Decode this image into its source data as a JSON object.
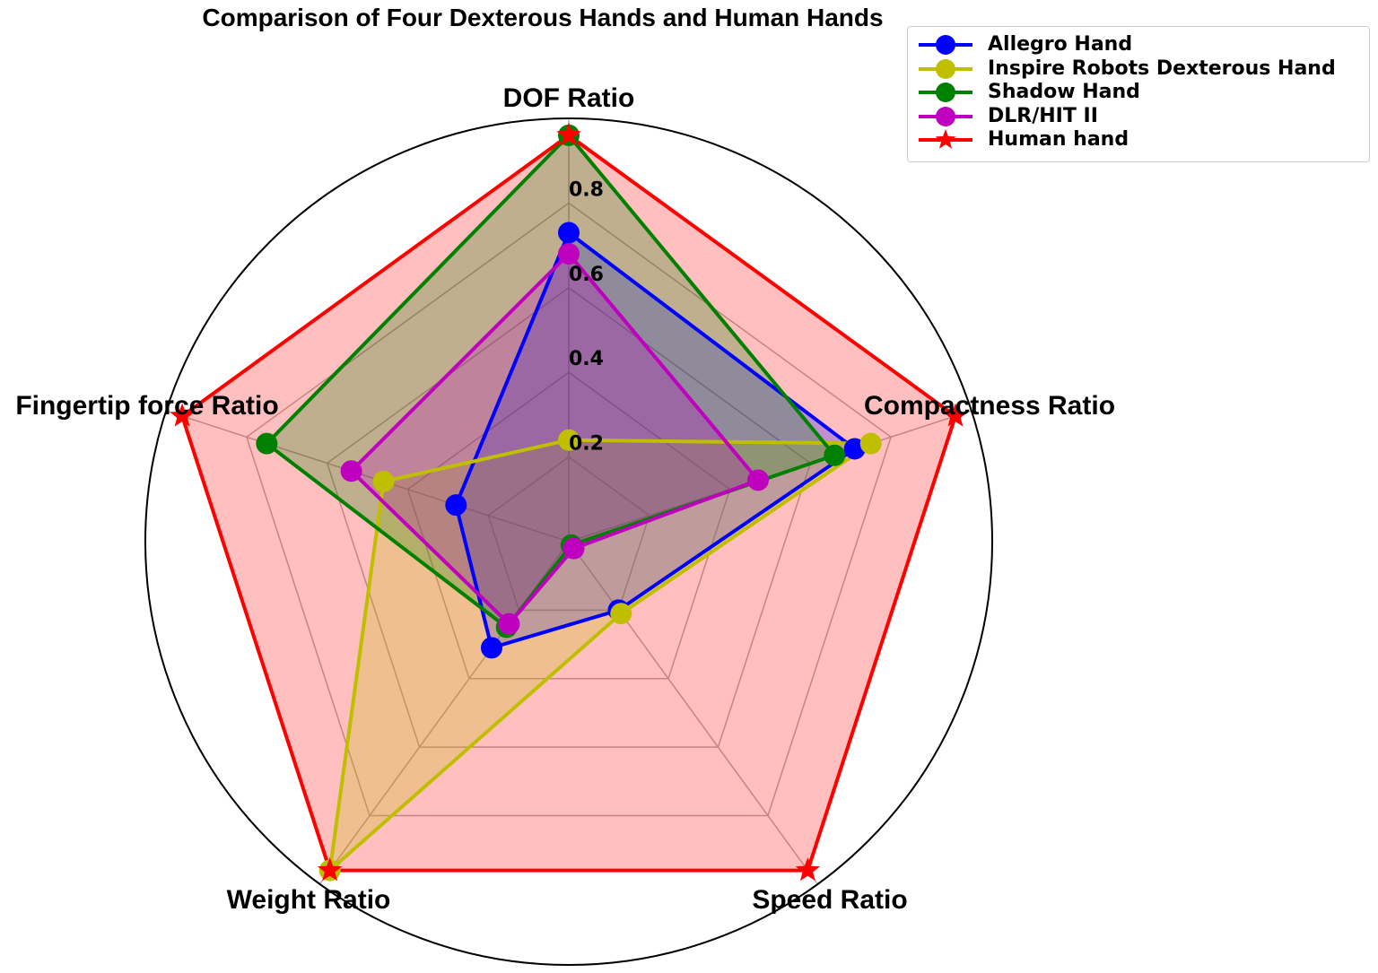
{
  "chart_data": {
    "type": "radar",
    "title": "Comparison of Four Dexterous Hands and Human Hands",
    "axes": [
      "DOF Ratio",
      "Compactness Ratio",
      "Speed Ratio",
      "Weight Ratio",
      "Fingertip force Ratio"
    ],
    "rlim": [
      0,
      1.0
    ],
    "r_ticks": [
      "0.2",
      "0.4",
      "0.6",
      "0.8"
    ],
    "r_tick_values": [
      0.2,
      0.4,
      0.6,
      0.8
    ],
    "grid": true,
    "legend_position": "top-right",
    "series": [
      {
        "name": "Allegro Hand",
        "color": "#0000ff",
        "marker": "circle",
        "values": [
          0.73,
          0.71,
          0.2,
          0.31,
          0.28
        ]
      },
      {
        "name": "Inspire Robots Dexterous Hand",
        "color": "#bfbf00",
        "marker": "circle",
        "values": [
          0.24,
          0.75,
          0.21,
          0.96,
          0.46
        ]
      },
      {
        "name": "Shadow Hand",
        "color": "#008000",
        "marker": "circle",
        "values": [
          0.96,
          0.66,
          0.01,
          0.25,
          0.75
        ]
      },
      {
        "name": "DLR/HIT II",
        "color": "#bf00bf",
        "marker": "circle",
        "values": [
          0.68,
          0.47,
          0.02,
          0.24,
          0.54
        ]
      },
      {
        "name": "Human hand",
        "color": "#ff0000",
        "marker": "star",
        "values": [
          0.96,
          0.96,
          0.96,
          0.96,
          0.96
        ]
      }
    ]
  }
}
